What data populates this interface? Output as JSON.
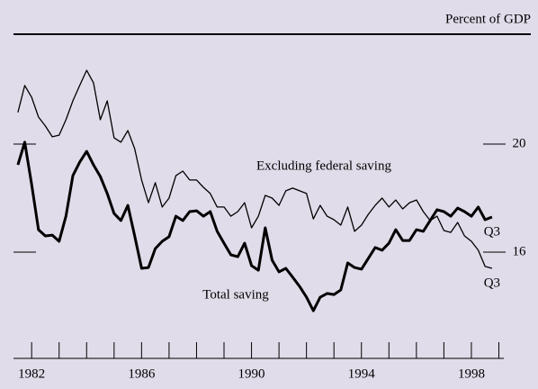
{
  "chart_data": {
    "type": "line",
    "unit_label": "Percent of GDP",
    "x": [
      1981.5,
      1981.75,
      1982,
      1982.25,
      1982.5,
      1982.75,
      1983,
      1983.25,
      1983.5,
      1983.75,
      1984,
      1984.25,
      1984.5,
      1984.75,
      1985,
      1985.25,
      1985.5,
      1985.75,
      1986,
      1986.25,
      1986.5,
      1986.75,
      1987,
      1987.25,
      1987.5,
      1987.75,
      1988,
      1988.25,
      1988.5,
      1988.75,
      1989,
      1989.25,
      1989.5,
      1989.75,
      1990,
      1990.25,
      1990.5,
      1990.75,
      1991,
      1991.25,
      1991.5,
      1991.75,
      1992,
      1992.25,
      1992.5,
      1992.75,
      1993,
      1993.25,
      1993.5,
      1993.75,
      1994,
      1994.25,
      1994.5,
      1994.75,
      1995,
      1995.25,
      1995.5,
      1995.75,
      1996,
      1996.25,
      1996.5,
      1996.75,
      1997,
      1997.25,
      1997.5,
      1997.75,
      1998,
      1998.25,
      1998.5,
      1998.75
    ],
    "series": [
      {
        "name": "Excluding federal saving",
        "color": "#000000",
        "width": 1.3,
        "end_label": "Q3",
        "values": [
          21.17,
          22.17,
          21.73,
          21,
          20.67,
          20.27,
          20.33,
          20.9,
          21.6,
          22.17,
          22.73,
          22.27,
          20.9,
          21.6,
          20.23,
          20.07,
          20.5,
          19.83,
          18.67,
          17.83,
          18.57,
          17.67,
          18,
          18.83,
          19,
          18.67,
          18.67,
          18.4,
          18.17,
          17.67,
          17.67,
          17.33,
          17.5,
          17.83,
          16.9,
          17.33,
          18.1,
          18,
          17.73,
          18.27,
          18.37,
          18.27,
          18.17,
          17.23,
          17.73,
          17.33,
          17.2,
          17,
          17.67,
          16.77,
          17,
          17.4,
          17.73,
          18,
          17.67,
          17.93,
          17.6,
          17.83,
          17.93,
          17.5,
          17.17,
          17.33,
          16.8,
          16.73,
          17.1,
          16.6,
          16.4,
          16.07,
          15.47,
          15.4
        ]
      },
      {
        "name": "Total saving",
        "color": "#000000",
        "width": 3,
        "end_label": "Q3",
        "values": [
          19.23,
          20.07,
          18.5,
          16.83,
          16.6,
          16.63,
          16.4,
          17.33,
          18.83,
          19.33,
          19.73,
          19.23,
          18.8,
          18.17,
          17.43,
          17.17,
          17.73,
          16.6,
          15.4,
          15.43,
          16.13,
          16.4,
          16.57,
          17.33,
          17.17,
          17.5,
          17.53,
          17.33,
          17.5,
          16.77,
          16.33,
          15.9,
          15.83,
          16.33,
          15.5,
          15.33,
          16.9,
          15.7,
          15.27,
          15.4,
          15.07,
          14.73,
          14.33,
          13.83,
          14.33,
          14.47,
          14.43,
          14.6,
          15.6,
          15.43,
          15.37,
          15.77,
          16.17,
          16.07,
          16.33,
          16.83,
          16.43,
          16.43,
          16.83,
          16.77,
          17.17,
          17.57,
          17.5,
          17.33,
          17.63,
          17.5,
          17.33,
          17.67,
          17.2,
          17.3
        ]
      }
    ],
    "xlim": [
      1981.34,
      1999.18
    ],
    "xticks": [
      1982,
      1986,
      1990,
      1994,
      1998
    ],
    "xminor_ticks": [
      1982,
      1983,
      1984,
      1985,
      1986,
      1987,
      1988,
      1989,
      1990,
      1991,
      1992,
      1993,
      1994,
      1995,
      1996,
      1997,
      1998,
      1999
    ],
    "ylim": [
      12,
      24
    ],
    "yticks": [
      16,
      20
    ],
    "grid": false
  }
}
